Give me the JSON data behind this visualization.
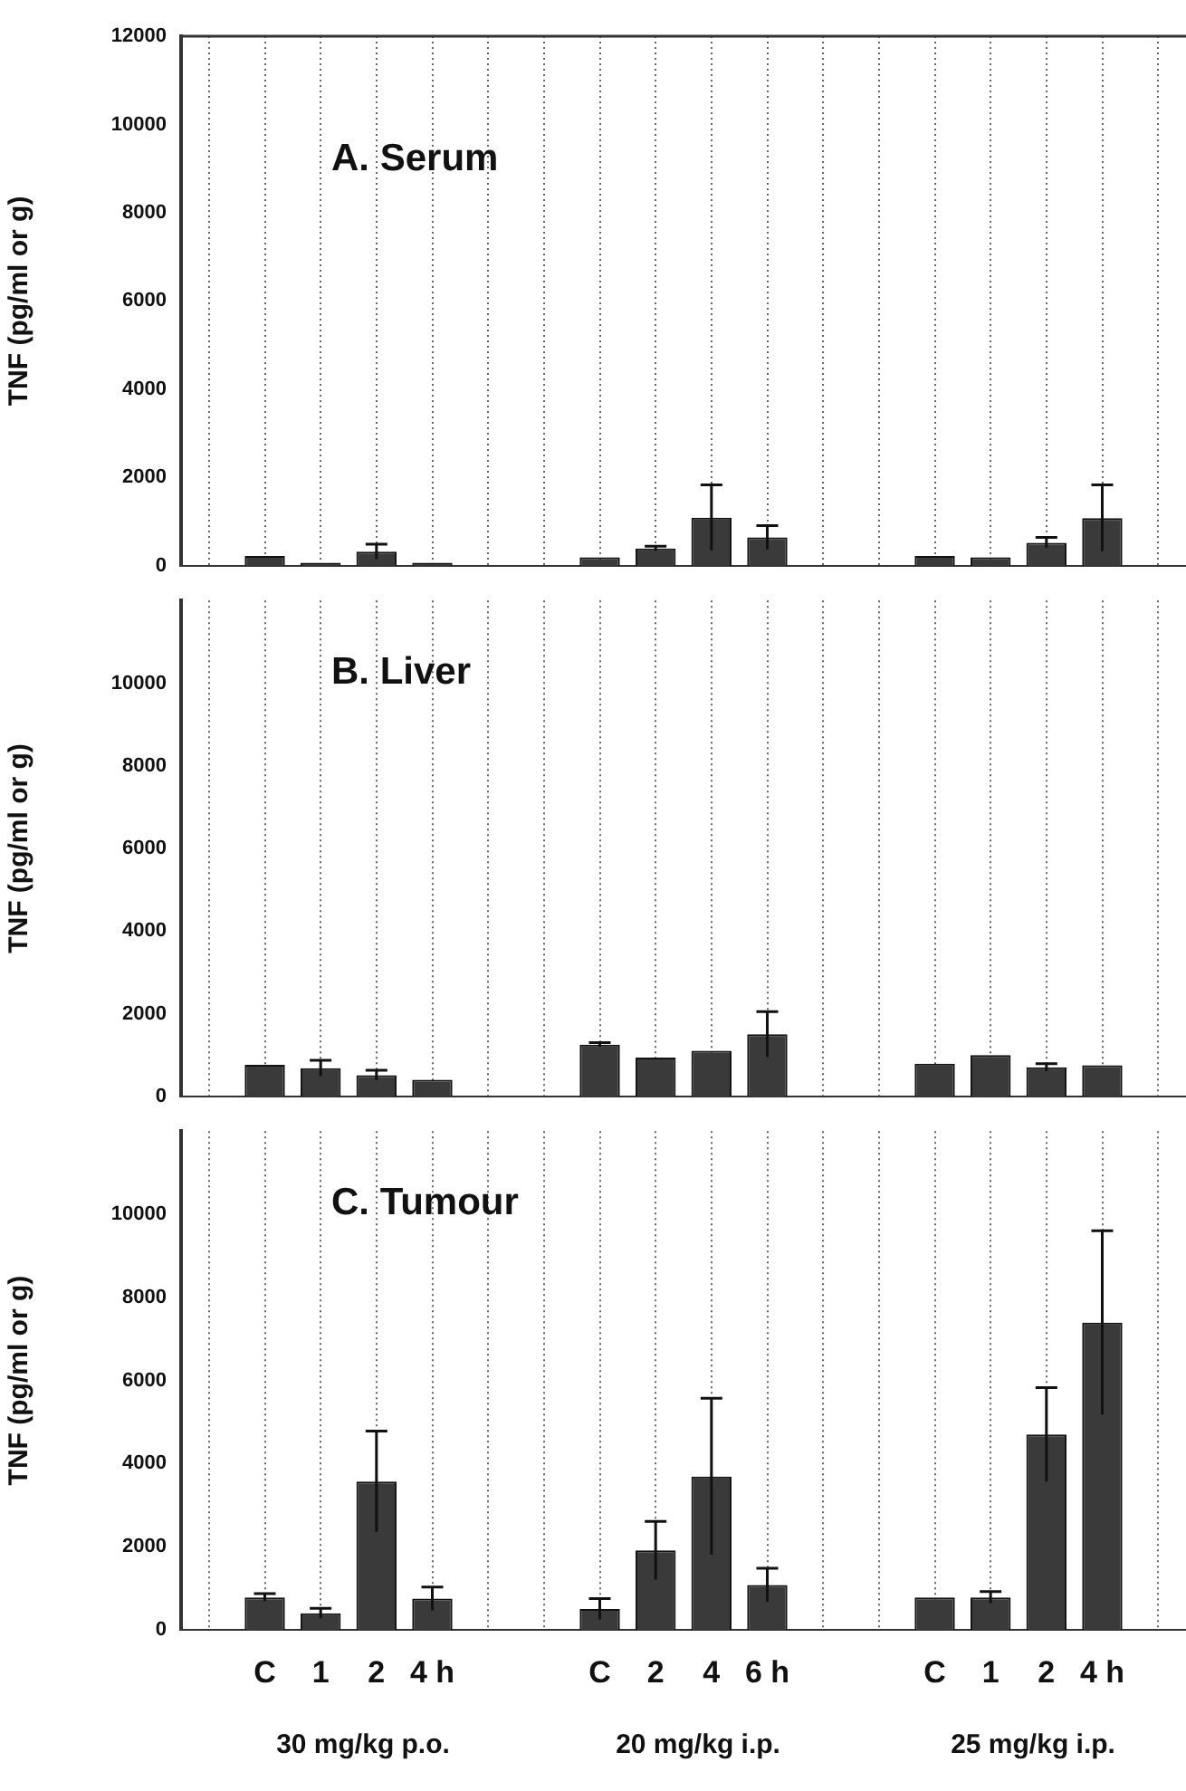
{
  "chart_data": [
    {
      "type": "bar",
      "title": "A. Serum",
      "ylabel": "TNF (pg/ml or g)",
      "categories": [
        null,
        null,
        null,
        null,
        null,
        null,
        null,
        null,
        null,
        null,
        null,
        null,
        null,
        null,
        null,
        null,
        null,
        null
      ],
      "values": [
        null,
        220,
        70,
        320,
        70,
        null,
        null,
        190,
        390,
        1090,
        640,
        null,
        null,
        220,
        190,
        520,
        1080,
        null
      ],
      "errors": [
        null,
        null,
        null,
        170,
        null,
        null,
        null,
        null,
        50,
        740,
        270,
        null,
        null,
        null,
        null,
        120,
        750,
        null
      ],
      "color": "#3a3a3a",
      "ylim": [
        0,
        12000
      ],
      "yticks": [
        0,
        2000,
        4000,
        6000,
        8000,
        10000,
        12000
      ],
      "grid": "x",
      "tick_labels": "y"
    },
    {
      "type": "bar",
      "title": "B. Liver",
      "ylabel": "TNF (pg/ml or g)",
      "categories": [
        null,
        null,
        null,
        null,
        null,
        null,
        null,
        null,
        null,
        null,
        null,
        null,
        null,
        null,
        null,
        null,
        null,
        null
      ],
      "values": [
        null,
        760,
        680,
        510,
        400,
        null,
        null,
        1250,
        940,
        1100,
        1500,
        null,
        null,
        790,
        1000,
        700,
        750,
        null
      ],
      "errors": [
        null,
        null,
        190,
        120,
        null,
        null,
        null,
        50,
        null,
        null,
        550,
        null,
        null,
        null,
        null,
        90,
        null,
        null
      ],
      "color": "#3a3a3a",
      "ylim": [
        0,
        12000
      ],
      "yticks": [
        0,
        2000,
        4000,
        6000,
        8000,
        10000
      ],
      "grid": "x",
      "tick_labels": "y"
    },
    {
      "type": "bar",
      "title": "C. Tumour",
      "ylabel": "TNF (pg/ml or g)",
      "categories": [
        null,
        "C",
        "1",
        "2",
        "4 h",
        null,
        null,
        "C",
        "2",
        "4",
        "6 h",
        null,
        null,
        "C",
        "1",
        "2",
        "4 h",
        null
      ],
      "values": [
        null,
        780,
        400,
        3570,
        750,
        null,
        null,
        500,
        1910,
        3690,
        1080,
        null,
        null,
        780,
        780,
        4700,
        7390,
        null
      ],
      "errors": [
        null,
        90,
        120,
        1210,
        280,
        null,
        null,
        250,
        700,
        1880,
        400,
        null,
        null,
        null,
        140,
        1130,
        2210,
        null
      ],
      "color": "#3a3a3a",
      "ylim": [
        0,
        12000
      ],
      "yticks": [
        0,
        2000,
        4000,
        6000,
        8000,
        10000
      ],
      "grid": "x",
      "annotations": [
        "30 mg/kg p.o.",
        "20 mg/kg i.p.",
        "25 mg/kg i.p."
      ]
    }
  ]
}
